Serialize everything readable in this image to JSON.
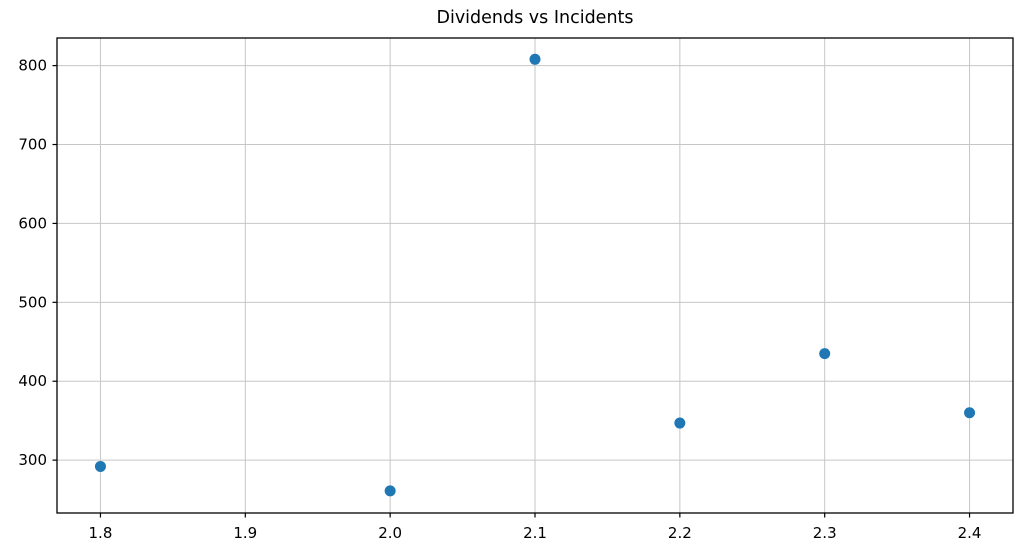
{
  "chart_data": {
    "type": "scatter",
    "title": "Dividends vs Incidents",
    "xlabel": "",
    "ylabel": "",
    "x": [
      1.8,
      2.0,
      2.1,
      2.2,
      2.3,
      2.4
    ],
    "y": [
      292,
      261,
      808,
      347,
      435,
      360
    ],
    "xticks": [
      1.8,
      1.9,
      2.0,
      2.1,
      2.2,
      2.3,
      2.4
    ],
    "yticks": [
      300,
      400,
      500,
      600,
      700,
      800
    ],
    "xlim": [
      1.77,
      2.43
    ],
    "ylim": [
      233,
      835
    ],
    "grid": true,
    "legend": "none",
    "marker_color": "#1f77b4",
    "grid_color": "#c6c6c6",
    "spine_color": "#000000",
    "background_color": "#ffffff"
  }
}
